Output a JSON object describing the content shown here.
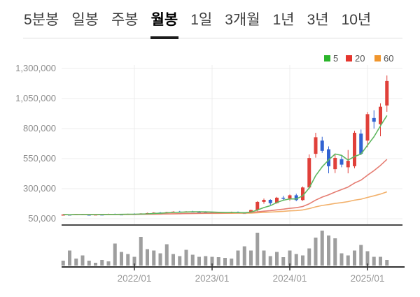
{
  "tabs": {
    "items": [
      {
        "label": "5분봉",
        "active": false
      },
      {
        "label": "일봉",
        "active": false
      },
      {
        "label": "주봉",
        "active": false
      },
      {
        "label": "월봉",
        "active": true
      },
      {
        "label": "1일",
        "active": false
      },
      {
        "label": "3개월",
        "active": false
      },
      {
        "label": "1년",
        "active": false
      },
      {
        "label": "3년",
        "active": false
      },
      {
        "label": "10년",
        "active": false
      }
    ]
  },
  "legend": [
    {
      "label": "5",
      "color": "#2bb52b"
    },
    {
      "label": "20",
      "color": "#e5352d"
    },
    {
      "label": "60",
      "color": "#f0962d"
    }
  ],
  "axis": {
    "y_ticks": [
      "1,300,000",
      "1,050,000",
      "800,000",
      "550,000",
      "300,000",
      "50,000"
    ],
    "y_values": [
      1300000,
      1050000,
      800000,
      550000,
      300000,
      50000
    ],
    "x_ticks": [
      "2022/01",
      "2023/01",
      "2024/01",
      "2025/01"
    ],
    "x_tick_months": [
      "2022-01",
      "2023-01",
      "2024-01",
      "2025-01"
    ]
  },
  "chart_data": {
    "type": "candlestick",
    "title": "월봉 주가 차트 (monthly candlestick with volume)",
    "ylim": [
      50000,
      1300000
    ],
    "price_currency": "KRW",
    "ma_periods": [
      5,
      20,
      60
    ],
    "months": [
      "2021-02",
      "2021-03",
      "2021-04",
      "2021-05",
      "2021-06",
      "2021-07",
      "2021-08",
      "2021-09",
      "2021-10",
      "2021-11",
      "2021-12",
      "2022-01",
      "2022-02",
      "2022-03",
      "2022-04",
      "2022-05",
      "2022-06",
      "2022-07",
      "2022-08",
      "2022-09",
      "2022-10",
      "2022-11",
      "2022-12",
      "2023-01",
      "2023-02",
      "2023-03",
      "2023-04",
      "2023-05",
      "2023-06",
      "2023-07",
      "2023-08",
      "2023-09",
      "2023-10",
      "2023-11",
      "2023-12",
      "2024-01",
      "2024-02",
      "2024-03",
      "2024-04",
      "2024-05",
      "2024-06",
      "2024-07",
      "2024-08",
      "2024-09",
      "2024-10",
      "2024-11",
      "2024-12",
      "2025-01",
      "2025-02",
      "2025-03",
      "2025-04"
    ],
    "ohlc": [
      [
        82000,
        88000,
        78000,
        85000
      ],
      [
        85000,
        87000,
        79000,
        81000
      ],
      [
        81000,
        90000,
        80000,
        88000
      ],
      [
        88000,
        91000,
        83000,
        85000
      ],
      [
        85000,
        89000,
        81000,
        83000
      ],
      [
        83000,
        88000,
        80000,
        86000
      ],
      [
        86000,
        90000,
        82000,
        84000
      ],
      [
        84000,
        92000,
        83000,
        90000
      ],
      [
        90000,
        93000,
        85000,
        87000
      ],
      [
        87000,
        91000,
        82000,
        85000
      ],
      [
        85000,
        92000,
        84000,
        90000
      ],
      [
        90000,
        95000,
        86000,
        88000
      ],
      [
        88000,
        96000,
        85000,
        94000
      ],
      [
        94000,
        100000,
        90000,
        97000
      ],
      [
        97000,
        104000,
        94000,
        101000
      ],
      [
        101000,
        106000,
        96000,
        99000
      ],
      [
        99000,
        108000,
        97000,
        105000
      ],
      [
        105000,
        112000,
        101000,
        109000
      ],
      [
        109000,
        115000,
        104000,
        107000
      ],
      [
        107000,
        113000,
        102000,
        111000
      ],
      [
        111000,
        116000,
        106000,
        109000
      ],
      [
        109000,
        114000,
        103000,
        106000
      ],
      [
        106000,
        112000,
        100000,
        103000
      ],
      [
        103000,
        108000,
        97000,
        100000
      ],
      [
        100000,
        106000,
        95000,
        98000
      ],
      [
        98000,
        105000,
        94000,
        102000
      ],
      [
        102000,
        109000,
        98000,
        106000
      ],
      [
        106000,
        110000,
        96000,
        99000
      ],
      [
        99000,
        104000,
        93000,
        96000
      ],
      [
        96000,
        126000,
        94000,
        122000
      ],
      [
        122000,
        196000,
        112000,
        190000
      ],
      [
        190000,
        218000,
        175000,
        207000
      ],
      [
        207000,
        212000,
        165000,
        180000
      ],
      [
        180000,
        232000,
        176000,
        225000
      ],
      [
        225000,
        240000,
        203000,
        218000
      ],
      [
        218000,
        252000,
        200000,
        245000
      ],
      [
        245000,
        258000,
        196000,
        205000
      ],
      [
        205000,
        318000,
        198000,
        310000
      ],
      [
        310000,
        585000,
        296000,
        555000
      ],
      [
        590000,
        765000,
        558000,
        728000
      ],
      [
        700000,
        732000,
        598000,
        615000
      ],
      [
        628000,
        652000,
        428000,
        487000
      ],
      [
        462000,
        585000,
        430000,
        556000
      ],
      [
        545000,
        572000,
        478000,
        500000
      ],
      [
        478000,
        622000,
        428000,
        532000
      ],
      [
        487000,
        782000,
        470000,
        765000
      ],
      [
        758000,
        792000,
        580000,
        590000
      ],
      [
        700000,
        938000,
        645000,
        920000
      ],
      [
        888000,
        952000,
        800000,
        857000
      ],
      [
        836000,
        1010000,
        736000,
        982000
      ],
      [
        992000,
        1242000,
        940000,
        1196000
      ]
    ],
    "volume_relative": [
      14,
      43,
      20,
      29,
      14,
      8,
      16,
      12,
      63,
      39,
      33,
      25,
      82,
      47,
      43,
      35,
      61,
      33,
      27,
      45,
      31,
      25,
      27,
      25,
      24,
      22,
      20,
      43,
      55,
      43,
      94,
      43,
      27,
      39,
      24,
      43,
      33,
      29,
      49,
      80,
      100,
      86,
      78,
      35,
      29,
      43,
      59,
      41,
      25,
      25,
      16
    ]
  },
  "colors": {
    "candle_up": "#e0403a",
    "candle_down": "#3163d2",
    "ma5": "#5fb760",
    "ma20": "#e57d72",
    "ma60": "#f2b06a",
    "volume_bar": "#9e9e9e",
    "grid": "#ececec",
    "axis_label": "#8c8c8c",
    "x_label": "#999999",
    "separator": "#4a4a4a",
    "axis_line": "#333333",
    "tab_active_underline": "#1c1c1c"
  }
}
